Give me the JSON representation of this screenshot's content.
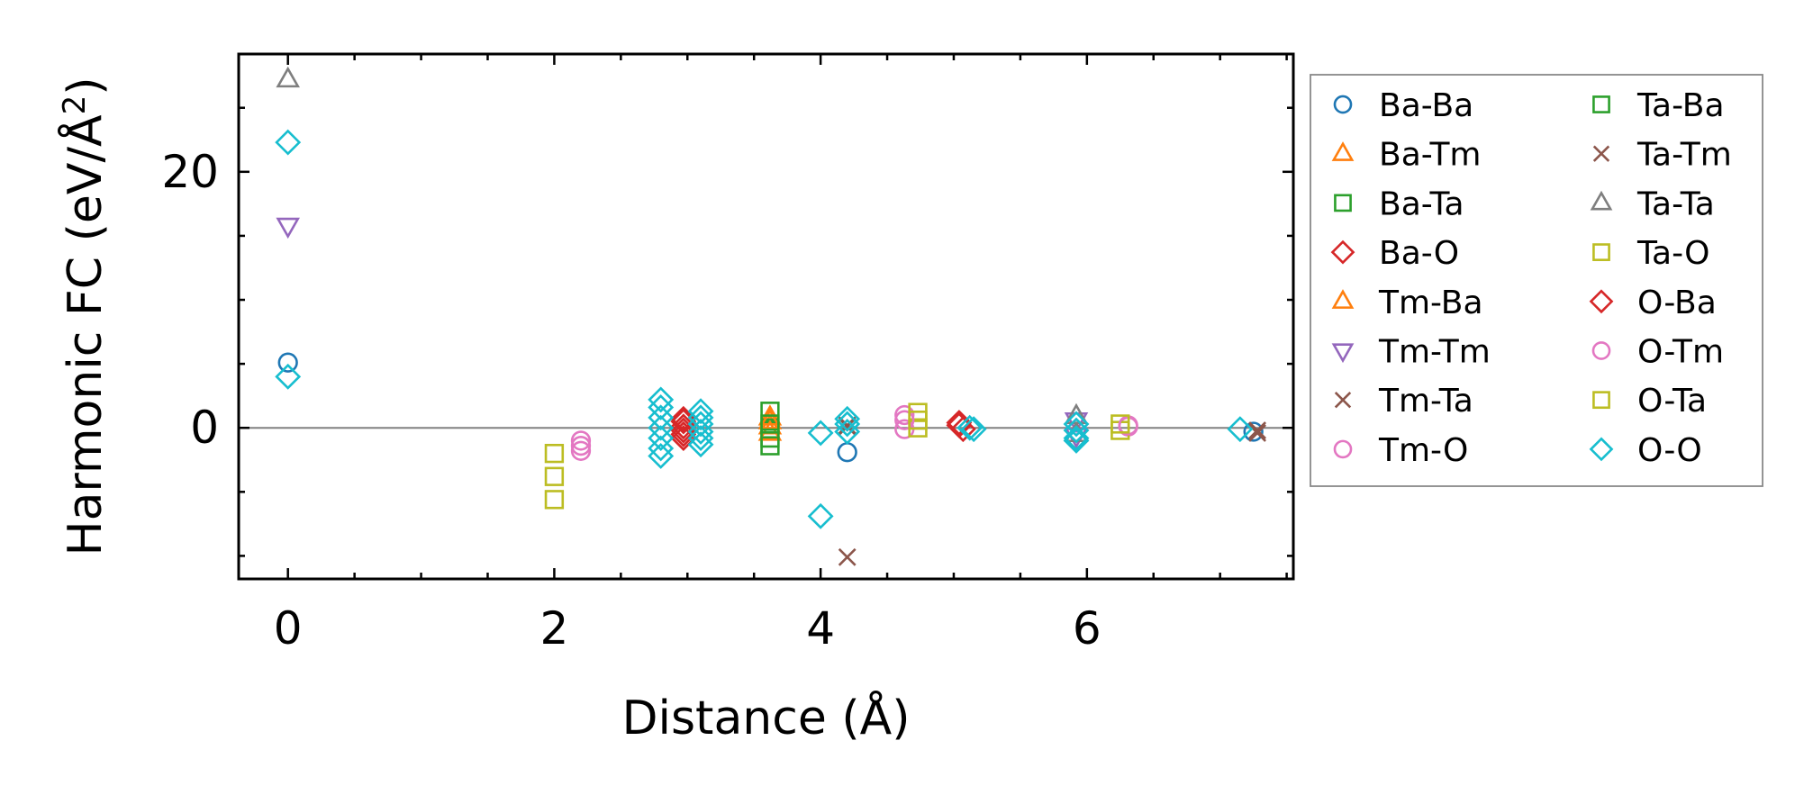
{
  "chart_data": {
    "type": "scatter",
    "title": "",
    "xlabel": "Distance (Å)",
    "ylabel": "Harmonic FC (eV/Å²)",
    "ylabel_parts": {
      "main": "Harmonic FC (eV/Å",
      "sup": "2",
      "close": ")"
    },
    "xlim": [
      -0.37,
      7.55
    ],
    "ylim": [
      -11.8,
      29.2
    ],
    "xticks": [
      0,
      2,
      4,
      6
    ],
    "yticks": [
      0,
      20
    ],
    "x_minor_step": 0.5,
    "y_minor_step": 5,
    "zero_line": true,
    "legend_position": "outside-right",
    "series": [
      {
        "name": "Ba-Ba",
        "marker": "circle",
        "color": "#1f77b4",
        "points": [
          [
            0,
            5.1
          ],
          [
            4.2,
            -1.9
          ],
          [
            7.25,
            -0.3
          ]
        ]
      },
      {
        "name": "Ba-Tm",
        "marker": "triangle-up",
        "color": "#ff7f0e",
        "points": [
          [
            3.62,
            0.8
          ],
          [
            3.62,
            0.1
          ]
        ]
      },
      {
        "name": "Ba-Ta",
        "marker": "square",
        "color": "#2ca02c",
        "points": [
          [
            3.62,
            1.3
          ],
          [
            3.62,
            -0.2
          ],
          [
            3.62,
            -1.4
          ]
        ]
      },
      {
        "name": "Ba-O",
        "marker": "diamond",
        "color": "#d62728",
        "points": [
          [
            2.97,
            0.5
          ],
          [
            2.97,
            -0.2
          ],
          [
            2.97,
            -0.8
          ],
          [
            5.04,
            0.4
          ],
          [
            5.07,
            -0.1
          ]
        ]
      },
      {
        "name": "Tm-Ba",
        "marker": "triangle-up",
        "color": "#ff7f0e",
        "points": [
          [
            3.62,
            0.5
          ],
          [
            3.62,
            -0.4
          ]
        ]
      },
      {
        "name": "Tm-Tm",
        "marker": "triangle-down",
        "color": "#9467bd",
        "points": [
          [
            0,
            15.8
          ],
          [
            5.92,
            0.6
          ],
          [
            5.92,
            -0.6
          ]
        ]
      },
      {
        "name": "Tm-Ta",
        "marker": "x",
        "color": "#8c564b",
        "points": [
          [
            4.2,
            -10.1
          ],
          [
            4.2,
            0.2
          ],
          [
            7.28,
            -0.4
          ]
        ]
      },
      {
        "name": "Tm-O",
        "marker": "circle",
        "color": "#e377c2",
        "points": [
          [
            2.2,
            -1.0
          ],
          [
            2.2,
            -1.8
          ],
          [
            4.63,
            1.0
          ],
          [
            4.63,
            -0.1
          ],
          [
            6.31,
            0.1
          ]
        ]
      },
      {
        "name": "Ta-Ba",
        "marker": "square",
        "color": "#2ca02c",
        "points": [
          [
            3.62,
            0.3
          ],
          [
            3.62,
            -0.8
          ]
        ]
      },
      {
        "name": "Ta-Tm",
        "marker": "x",
        "color": "#8c564b",
        "points": [
          [
            4.2,
            0.1
          ],
          [
            7.28,
            -0.2
          ]
        ]
      },
      {
        "name": "Ta-Ta",
        "marker": "triangle-up",
        "color": "#7f7f7f",
        "points": [
          [
            0,
            27.2
          ],
          [
            5.92,
            0.9
          ],
          [
            5.92,
            -0.5
          ]
        ]
      },
      {
        "name": "Ta-O",
        "marker": "square",
        "color": "#bcbd22",
        "points": [
          [
            2.0,
            -2.0
          ],
          [
            2.0,
            -5.6
          ],
          [
            4.73,
            1.2
          ],
          [
            4.73,
            0.0
          ],
          [
            6.25,
            -0.2
          ]
        ]
      },
      {
        "name": "O-Ba",
        "marker": "diamond",
        "color": "#d62728",
        "points": [
          [
            2.97,
            0.7
          ],
          [
            2.97,
            0.1
          ],
          [
            2.97,
            -0.5
          ],
          [
            5.04,
            0.2
          ]
        ]
      },
      {
        "name": "O-Tm",
        "marker": "circle",
        "color": "#e377c2",
        "points": [
          [
            2.2,
            -1.4
          ],
          [
            4.63,
            0.6
          ],
          [
            6.31,
            0.2
          ]
        ]
      },
      {
        "name": "O-Ta",
        "marker": "square",
        "color": "#bcbd22",
        "points": [
          [
            2.0,
            -3.8
          ],
          [
            4.73,
            0.6
          ],
          [
            6.25,
            0.3
          ]
        ]
      },
      {
        "name": "O-O",
        "marker": "diamond",
        "color": "#17becf",
        "points": [
          [
            0,
            22.3
          ],
          [
            0,
            4.0
          ],
          [
            2.8,
            2.2
          ],
          [
            2.8,
            1.6
          ],
          [
            2.8,
            0.8
          ],
          [
            2.8,
            0.0
          ],
          [
            2.8,
            -0.8
          ],
          [
            2.8,
            -1.6
          ],
          [
            2.8,
            -2.2
          ],
          [
            3.1,
            1.3
          ],
          [
            3.1,
            0.8
          ],
          [
            3.1,
            0.3
          ],
          [
            3.1,
            -0.3
          ],
          [
            3.1,
            -0.8
          ],
          [
            3.1,
            -1.3
          ],
          [
            4.0,
            -0.4
          ],
          [
            4.0,
            -6.9
          ],
          [
            4.2,
            0.7
          ],
          [
            4.2,
            0.3
          ],
          [
            4.2,
            -0.3
          ],
          [
            5.12,
            0.0
          ],
          [
            5.15,
            -0.1
          ],
          [
            5.92,
            0.3
          ],
          [
            5.92,
            -0.2
          ],
          [
            5.92,
            -0.8
          ],
          [
            5.92,
            -1.0
          ],
          [
            7.15,
            -0.1
          ]
        ]
      }
    ]
  }
}
